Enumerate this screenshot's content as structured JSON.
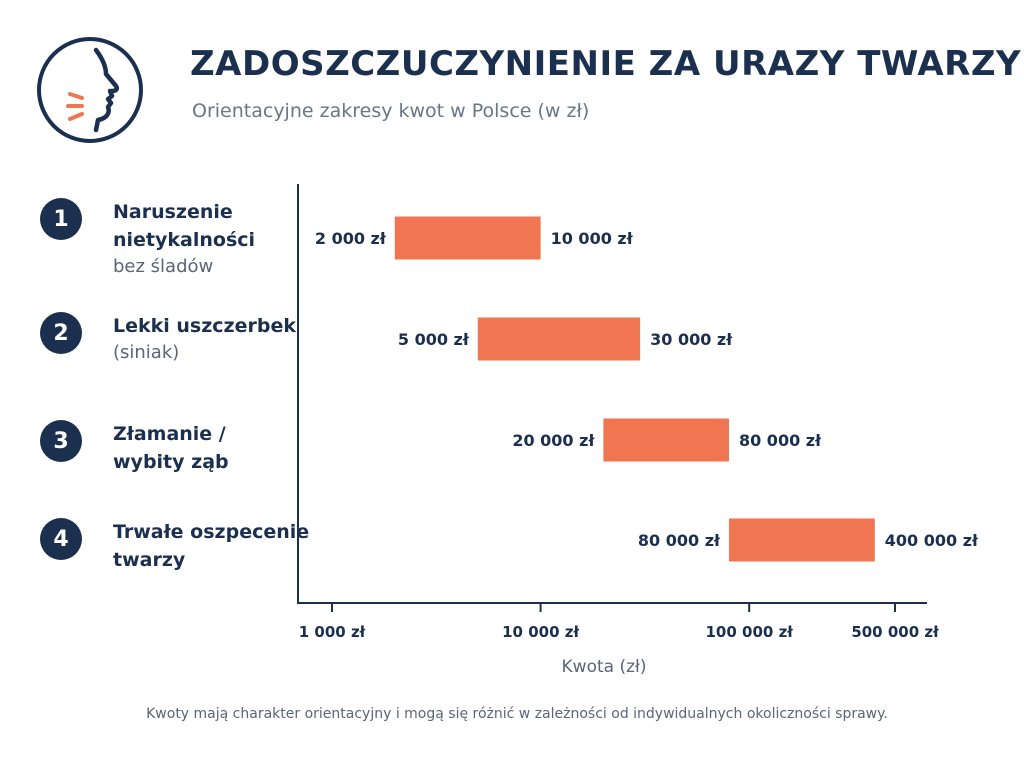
{
  "header": {
    "title": "ZADOSZCZUCZYNIENIE ZA URAZY TWARZY",
    "subtitle": "Orientacyjne zakresy kwot w Polsce (w zł)"
  },
  "logo_icon": "face-profile-speaking-icon",
  "colors": {
    "navy": "#1b2f4e",
    "bar": "#ef7650",
    "accent": "#ef7650"
  },
  "categories": [
    {
      "number": "1",
      "main": "Naruszenie\nnietykalności",
      "sub": "bez śladów"
    },
    {
      "number": "2",
      "main": "Lekki uszczerbek",
      "sub": "(siniak)"
    },
    {
      "number": "3",
      "main": "Złamanie /\nwybity ząb",
      "sub": ""
    },
    {
      "number": "4",
      "main": "Trwałe oszpecenie\ntwarzy",
      "sub": ""
    }
  ],
  "chart_data": {
    "type": "bar",
    "orientation": "horizontal",
    "scale": "log",
    "title": "ZADOSZCZUCZYNIENIE ZA URAZY TWARZY",
    "subtitle": "Orientacyjne zakresy kwot w Polsce (w zł)",
    "xlabel": "Kwota (zł)",
    "ylabel": "",
    "xlim": [
      1000,
      500000
    ],
    "grid": false,
    "legend": "none",
    "x_ticks": [
      {
        "value": 1000,
        "label": "1 000 zł"
      },
      {
        "value": 10000,
        "label": "10 000 zł"
      },
      {
        "value": 100000,
        "label": "100 000 zł"
      },
      {
        "value": 500000,
        "label": "500 000 zł"
      }
    ],
    "ranges": [
      {
        "min": 2000,
        "max": 10000,
        "min_label": "2 000 zł",
        "max_label": "10 000 zł"
      },
      {
        "min": 5000,
        "max": 30000,
        "min_label": "5 000 zł",
        "max_label": "30 000 zł"
      },
      {
        "min": 20000,
        "max": 80000,
        "min_label": "20 000 zł",
        "max_label": "80 000 zł"
      },
      {
        "min": 80000,
        "max": 400000,
        "min_label": "80 000 zł",
        "max_label": "400 000 zł"
      }
    ]
  },
  "footnote": "Kwoty mają charakter orientacyjny i mogą się różnić w zależności od indywidualnych okoliczności sprawy."
}
